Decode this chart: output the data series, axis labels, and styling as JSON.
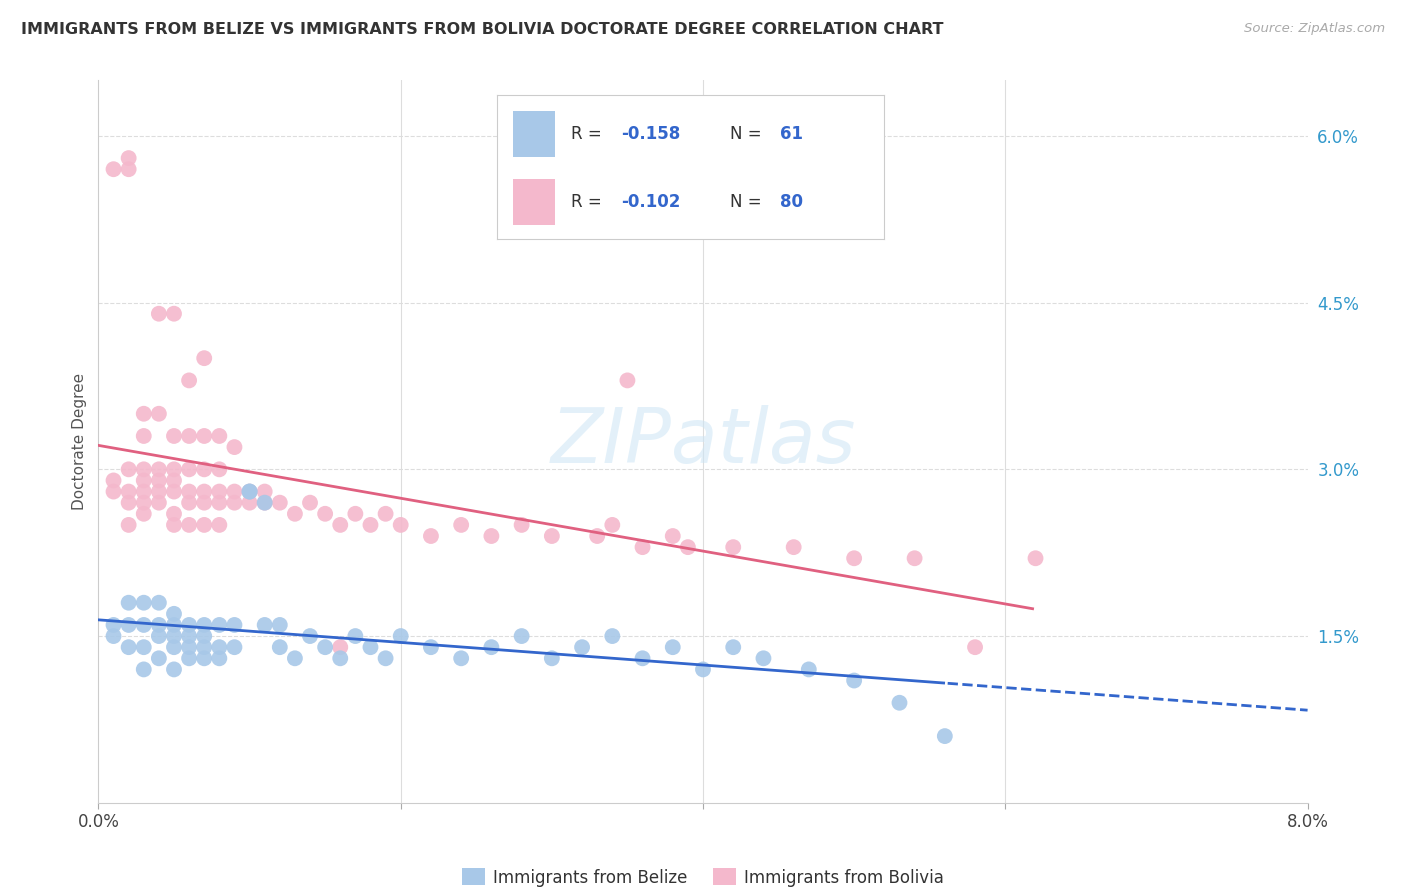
{
  "title": "IMMIGRANTS FROM BELIZE VS IMMIGRANTS FROM BOLIVIA DOCTORATE DEGREE CORRELATION CHART",
  "source_text": "Source: ZipAtlas.com",
  "ylabel": "Doctorate Degree",
  "xlim": [
    0.0,
    0.08
  ],
  "ylim": [
    0.0,
    0.065
  ],
  "belize_color": "#a8c8e8",
  "bolivia_color": "#f4b8cc",
  "belize_line_color": "#3366cc",
  "bolivia_line_color": "#e06080",
  "belize_R": -0.158,
  "belize_N": 61,
  "bolivia_R": -0.102,
  "bolivia_N": 80,
  "legend_label_belize": "Immigrants from Belize",
  "legend_label_bolivia": "Immigrants from Bolivia",
  "watermark": "ZIPatlas",
  "belize_x": [
    0.001,
    0.001,
    0.002,
    0.002,
    0.002,
    0.003,
    0.003,
    0.003,
    0.003,
    0.004,
    0.004,
    0.004,
    0.004,
    0.005,
    0.005,
    0.005,
    0.005,
    0.005,
    0.006,
    0.006,
    0.006,
    0.006,
    0.007,
    0.007,
    0.007,
    0.007,
    0.008,
    0.008,
    0.008,
    0.009,
    0.009,
    0.01,
    0.01,
    0.011,
    0.011,
    0.012,
    0.012,
    0.013,
    0.014,
    0.015,
    0.016,
    0.017,
    0.018,
    0.019,
    0.02,
    0.022,
    0.024,
    0.026,
    0.028,
    0.03,
    0.032,
    0.034,
    0.036,
    0.038,
    0.04,
    0.042,
    0.044,
    0.047,
    0.05,
    0.053,
    0.056
  ],
  "belize_y": [
    0.015,
    0.016,
    0.014,
    0.016,
    0.018,
    0.014,
    0.016,
    0.012,
    0.018,
    0.015,
    0.013,
    0.016,
    0.018,
    0.014,
    0.016,
    0.012,
    0.015,
    0.017,
    0.014,
    0.016,
    0.013,
    0.015,
    0.014,
    0.016,
    0.013,
    0.015,
    0.014,
    0.016,
    0.013,
    0.014,
    0.016,
    0.028,
    0.028,
    0.027,
    0.016,
    0.014,
    0.016,
    0.013,
    0.015,
    0.014,
    0.013,
    0.015,
    0.014,
    0.013,
    0.015,
    0.014,
    0.013,
    0.014,
    0.015,
    0.013,
    0.014,
    0.015,
    0.013,
    0.014,
    0.012,
    0.014,
    0.013,
    0.012,
    0.011,
    0.009,
    0.006
  ],
  "bolivia_x": [
    0.001,
    0.001,
    0.001,
    0.002,
    0.002,
    0.002,
    0.002,
    0.002,
    0.003,
    0.003,
    0.003,
    0.003,
    0.003,
    0.003,
    0.004,
    0.004,
    0.004,
    0.004,
    0.004,
    0.005,
    0.005,
    0.005,
    0.005,
    0.005,
    0.005,
    0.006,
    0.006,
    0.006,
    0.006,
    0.006,
    0.007,
    0.007,
    0.007,
    0.007,
    0.007,
    0.008,
    0.008,
    0.008,
    0.008,
    0.009,
    0.009,
    0.009,
    0.01,
    0.01,
    0.011,
    0.011,
    0.012,
    0.013,
    0.014,
    0.015,
    0.016,
    0.017,
    0.018,
    0.019,
    0.02,
    0.022,
    0.024,
    0.026,
    0.028,
    0.03,
    0.033,
    0.036,
    0.039,
    0.042,
    0.046,
    0.05,
    0.054,
    0.058,
    0.062,
    0.002,
    0.003,
    0.004,
    0.005,
    0.006,
    0.007,
    0.008,
    0.034,
    0.038,
    0.016,
    0.035
  ],
  "bolivia_y": [
    0.028,
    0.029,
    0.057,
    0.027,
    0.028,
    0.03,
    0.057,
    0.058,
    0.026,
    0.028,
    0.029,
    0.03,
    0.033,
    0.035,
    0.027,
    0.028,
    0.029,
    0.03,
    0.044,
    0.026,
    0.028,
    0.029,
    0.03,
    0.033,
    0.044,
    0.027,
    0.028,
    0.03,
    0.033,
    0.038,
    0.027,
    0.028,
    0.03,
    0.033,
    0.04,
    0.027,
    0.028,
    0.03,
    0.033,
    0.027,
    0.028,
    0.032,
    0.027,
    0.028,
    0.027,
    0.028,
    0.027,
    0.026,
    0.027,
    0.026,
    0.025,
    0.026,
    0.025,
    0.026,
    0.025,
    0.024,
    0.025,
    0.024,
    0.025,
    0.024,
    0.024,
    0.023,
    0.023,
    0.023,
    0.023,
    0.022,
    0.022,
    0.014,
    0.022,
    0.025,
    0.027,
    0.035,
    0.025,
    0.025,
    0.025,
    0.025,
    0.025,
    0.024,
    0.014,
    0.038
  ]
}
